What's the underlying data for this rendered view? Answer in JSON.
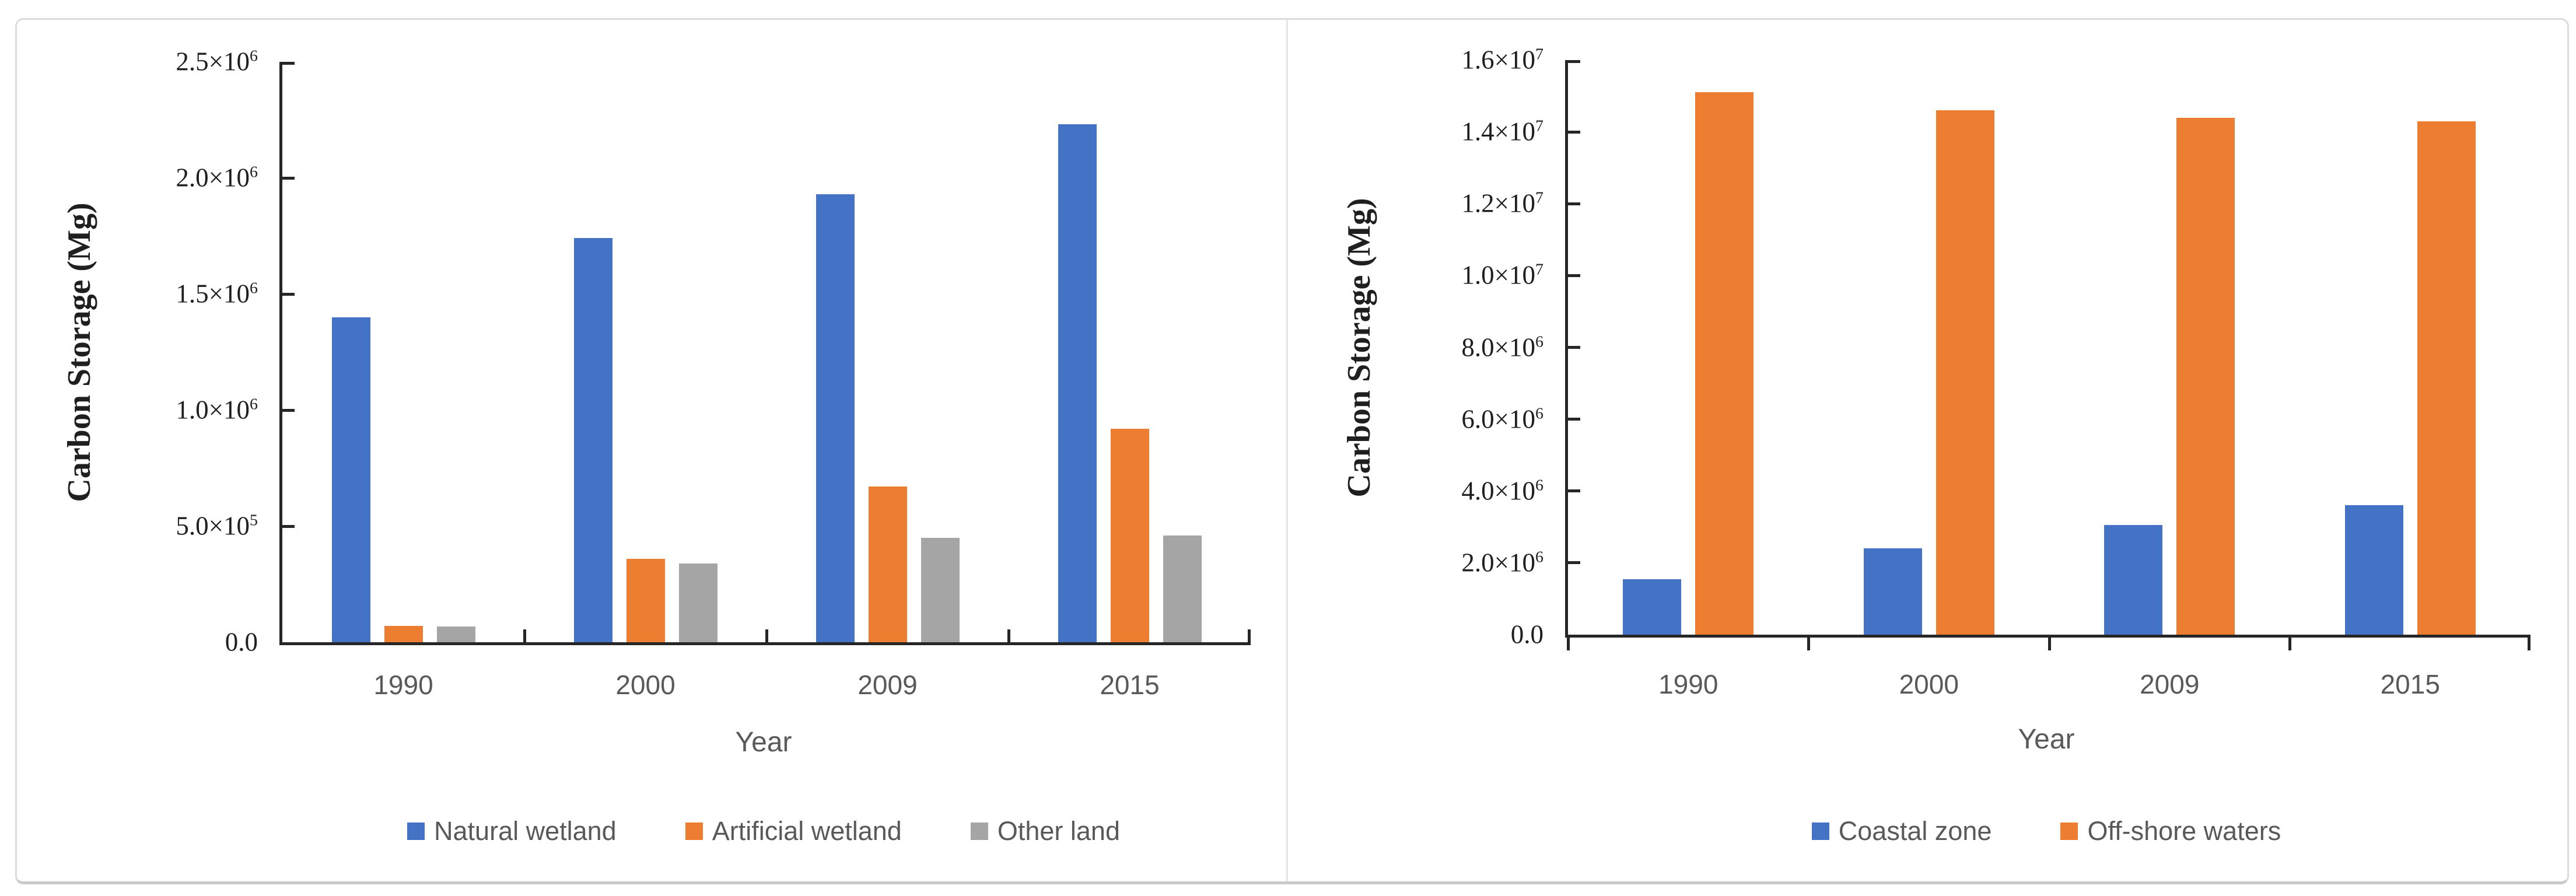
{
  "figure": {
    "background": "#ffffff",
    "frame_border_color": "#dcdcdc",
    "divider_color": "#e4e4e4",
    "axis_color": "#262626",
    "tick_label_color": "#1f1f1f",
    "secondary_text_color": "#595959"
  },
  "chart_data": [
    {
      "type": "bar",
      "title": "",
      "ylabel": "Carbon Storage (Mg)",
      "xlabel": "Year",
      "categories": [
        "1990",
        "2000",
        "2009",
        "2015"
      ],
      "series": [
        {
          "name": "Natural wetland",
          "color": "#4472C4",
          "values": [
            1400000,
            1740000,
            1930000,
            2230000
          ]
        },
        {
          "name": "Artificial wetland",
          "color": "#ED7D31",
          "values": [
            70000,
            360000,
            670000,
            920000
          ]
        },
        {
          "name": "Other land",
          "color": "#A5A5A5",
          "values": [
            68000,
            340000,
            450000,
            460000
          ]
        }
      ],
      "ylim": [
        0,
        2500000
      ],
      "yticks": [
        {
          "value": 0,
          "label": "0.0"
        },
        {
          "value": 500000,
          "label": "5.0×10^5"
        },
        {
          "value": 1000000,
          "label": "1.0×10^6"
        },
        {
          "value": 1500000,
          "label": "1.5×10^6"
        },
        {
          "value": 2000000,
          "label": "2.0×10^6"
        },
        {
          "value": 2500000,
          "label": "2.5×10^6"
        }
      ],
      "grid": false,
      "legend_position": "bottom"
    },
    {
      "type": "bar",
      "title": "",
      "ylabel": "Carbon Storage (Mg)",
      "xlabel": "Year",
      "categories": [
        "1990",
        "2000",
        "2009",
        "2015"
      ],
      "series": [
        {
          "name": "Coastal zone",
          "color": "#4472C4",
          "values": [
            1550000,
            2400000,
            3050000,
            3600000
          ]
        },
        {
          "name": "Off-shore waters",
          "color": "#ED7D31",
          "values": [
            15100000,
            14600000,
            14400000,
            14300000
          ]
        }
      ],
      "ylim": [
        0,
        16000000
      ],
      "yticks": [
        {
          "value": 0,
          "label": "0.0"
        },
        {
          "value": 2000000,
          "label": "2.0×10^6"
        },
        {
          "value": 4000000,
          "label": "4.0×10^6"
        },
        {
          "value": 6000000,
          "label": "6.0×10^6"
        },
        {
          "value": 8000000,
          "label": "8.0×10^6"
        },
        {
          "value": 10000000,
          "label": "1.0×10^7"
        },
        {
          "value": 12000000,
          "label": "1.2×10^7"
        },
        {
          "value": 14000000,
          "label": "1.4×10^7"
        },
        {
          "value": 16000000,
          "label": "1.6×10^7"
        }
      ],
      "grid": false,
      "legend_position": "bottom"
    }
  ]
}
